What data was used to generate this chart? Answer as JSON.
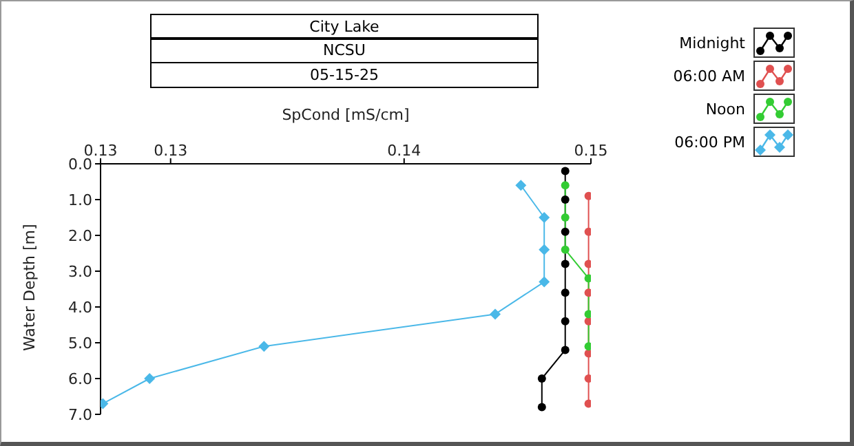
{
  "chart_data": {
    "type": "line",
    "title": "City Lake",
    "subtitle": "NCSU",
    "annotations": [
      "05-15-25"
    ],
    "xlabel": "SpCond [mS/cm]",
    "ylabel": "Water Depth [m]",
    "xlim": [
      0.127,
      0.148
    ],
    "xticks": [
      {
        "value": 0.127,
        "label": "0.13"
      },
      0.13,
      0.14,
      {
        "value": 0.148,
        "label": "0.15"
      }
    ],
    "ylim": [
      7.0,
      0.0
    ],
    "yticks": [
      {
        "value": 0,
        "label": "0.0"
      },
      {
        "value": 1,
        "label": "1.0"
      },
      {
        "value": 2,
        "label": "2.0"
      },
      {
        "value": 3,
        "label": "3.0"
      },
      {
        "value": 4,
        "label": "4.0"
      },
      {
        "value": 5,
        "label": "5.0"
      },
      {
        "value": 6,
        "label": "6.0"
      },
      {
        "value": 7,
        "label": "7.0"
      }
    ],
    "legend": "top right",
    "line_style": "solid",
    "series": [
      {
        "name": "Midnight",
        "color": "#000000",
        "marker": "circle",
        "x": [
          0.1469,
          0.1469,
          0.1469,
          0.1469,
          0.1469,
          0.1469,
          0.1469,
          0.1459,
          0.1459
        ],
        "values": [
          0.2,
          1.0,
          1.9,
          2.8,
          3.6,
          4.4,
          5.2,
          6.0,
          6.8
        ]
      },
      {
        "name": "06:00 AM",
        "color": "#e05050",
        "marker": "circle",
        "x": [
          0.1479,
          0.1479,
          0.1479,
          0.1479,
          0.1479,
          0.1479,
          0.1479,
          0.1479
        ],
        "values": [
          0.9,
          1.9,
          2.8,
          3.6,
          4.4,
          5.3,
          6.0,
          6.7
        ]
      },
      {
        "name": "Noon",
        "color": "#33cc33",
        "marker": "circle",
        "x": [
          0.1469,
          0.1469,
          0.1469,
          0.1479,
          0.1479,
          0.1479
        ],
        "values": [
          0.6,
          1.5,
          2.4,
          3.2,
          4.2,
          5.1
        ]
      },
      {
        "name": "06:00 PM",
        "color": "#4ab8e8",
        "marker": "diamond",
        "x": [
          0.145,
          0.146,
          0.146,
          0.146,
          0.1439,
          0.134,
          0.1291,
          0.1271
        ],
        "values": [
          0.6,
          1.5,
          2.4,
          3.3,
          4.2,
          5.1,
          6.0,
          6.7
        ]
      }
    ]
  }
}
